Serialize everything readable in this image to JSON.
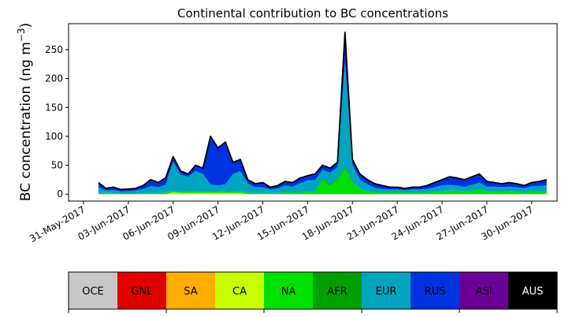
{
  "chart_data": {
    "type": "area",
    "title": "Continental contribution to BC concentrations",
    "ylabel": "BC concentration (ng m⁻³)",
    "xlabel": "",
    "ylim": [
      -12,
      295
    ],
    "yticks": [
      0,
      50,
      100,
      150,
      200,
      250
    ],
    "xlim": [
      -1,
      31.7
    ],
    "xtick_positions": [
      0,
      3,
      6,
      9,
      12,
      15,
      18,
      21,
      24,
      27,
      30
    ],
    "xtick_labels": [
      "31-May-2017",
      "03-Jun-2017",
      "06-Jun-2017",
      "09-Jun-2017",
      "12-Jun-2017",
      "15-Jun-2017",
      "18-Jun-2017",
      "21-Jun-2017",
      "24-Jun-2017",
      "27-Jun-2017",
      "30-Jun-2017"
    ],
    "x": [
      1.0,
      1.5,
      2.0,
      2.5,
      3.0,
      3.5,
      4.0,
      4.5,
      5.0,
      5.5,
      6.0,
      6.5,
      7.0,
      7.5,
      8.0,
      8.5,
      9.0,
      9.5,
      10.0,
      10.5,
      11.0,
      11.5,
      12.0,
      12.5,
      13.0,
      13.5,
      14.0,
      14.5,
      15.0,
      15.5,
      16.0,
      16.5,
      17.0,
      17.5,
      18.0,
      18.5,
      19.0,
      19.5,
      20.0,
      20.5,
      21.0,
      21.5,
      22.0,
      22.5,
      23.0,
      23.5,
      24.0,
      24.5,
      25.0,
      25.5,
      26.0,
      26.5,
      27.0,
      27.5,
      28.0,
      28.5,
      29.0,
      29.5,
      30.0,
      30.5,
      31.0
    ],
    "x_units": "days after 31-May-2017",
    "total": [
      20,
      10,
      12,
      8,
      9,
      10,
      15,
      25,
      20,
      28,
      65,
      40,
      35,
      50,
      45,
      100,
      80,
      90,
      55,
      60,
      25,
      18,
      20,
      12,
      15,
      22,
      20,
      28,
      32,
      35,
      50,
      45,
      55,
      280,
      60,
      35,
      25,
      18,
      15,
      12,
      12,
      10,
      12,
      12,
      15,
      20,
      25,
      30,
      28,
      25,
      30,
      35,
      22,
      20,
      18,
      20,
      18,
      15,
      20,
      22,
      25
    ],
    "series": [
      {
        "name": "OCE",
        "color": "#c8c8c8",
        "values": [
          0,
          0,
          0,
          0,
          0,
          0,
          0,
          0,
          0,
          0,
          0,
          0,
          0,
          0,
          0,
          0,
          0,
          0,
          0,
          0,
          0,
          0,
          0,
          0,
          0,
          0,
          0,
          0,
          0,
          0,
          0,
          0,
          0,
          0,
          0,
          0,
          0,
          0,
          0,
          0,
          0,
          0,
          0,
          0,
          0,
          0,
          0,
          0,
          0,
          0,
          0,
          0,
          0,
          0,
          0,
          0,
          0,
          0,
          0,
          0,
          0
        ]
      },
      {
        "name": "GNL",
        "color": "#e00000",
        "values": [
          0,
          0,
          0,
          0,
          0,
          0,
          0,
          0,
          0,
          0,
          0,
          0,
          0,
          0,
          0,
          0,
          0,
          0,
          0,
          0,
          0,
          0,
          0,
          0,
          0,
          0,
          0,
          0,
          0,
          0,
          0,
          0,
          0,
          0,
          0,
          0,
          0,
          0,
          0,
          0,
          0,
          0,
          0,
          0,
          0,
          0,
          0,
          0,
          0,
          0,
          0,
          0,
          0,
          0,
          0,
          0,
          0,
          0,
          0,
          0,
          0
        ]
      },
      {
        "name": "SA",
        "color": "#ffad00",
        "values": [
          0,
          0,
          0,
          0,
          0,
          0,
          0,
          0,
          0,
          0,
          1,
          1,
          1,
          1,
          1,
          1,
          1,
          1,
          1,
          1,
          0,
          0,
          0,
          0,
          0,
          0,
          0,
          0,
          0,
          0,
          0,
          0,
          0,
          0,
          0,
          0,
          0,
          0,
          0,
          0,
          0,
          0,
          0,
          0,
          0,
          0,
          0,
          0,
          0,
          0,
          0,
          0,
          0,
          0,
          0,
          0,
          0,
          0,
          0,
          0,
          0
        ]
      },
      {
        "name": "CA",
        "color": "#c8ff00",
        "values": [
          0,
          0,
          0,
          0,
          0,
          0,
          0,
          0,
          0,
          0,
          2,
          1,
          1,
          1,
          1,
          1,
          1,
          1,
          1,
          1,
          0,
          0,
          0,
          0,
          0,
          0,
          0,
          0,
          0,
          0,
          0,
          0,
          0,
          0,
          0,
          0,
          0,
          0,
          0,
          0,
          0,
          0,
          0,
          0,
          0,
          0,
          0,
          0,
          0,
          0,
          0,
          0,
          0,
          0,
          0,
          0,
          0,
          0,
          0,
          0,
          0
        ]
      },
      {
        "name": "NA",
        "color": "#00e000",
        "values": [
          2,
          2,
          2,
          1,
          1,
          1,
          2,
          2,
          2,
          3,
          3,
          2,
          3,
          3,
          3,
          3,
          3,
          3,
          3,
          3,
          3,
          2,
          2,
          2,
          2,
          3,
          3,
          3,
          4,
          4,
          25,
          15,
          25,
          45,
          20,
          10,
          5,
          3,
          3,
          3,
          3,
          3,
          3,
          3,
          3,
          4,
          5,
          6,
          6,
          5,
          6,
          8,
          5,
          5,
          5,
          5,
          4,
          3,
          5,
          5,
          5
        ]
      },
      {
        "name": "AFR",
        "color": "#00a000",
        "values": [
          0,
          0,
          0,
          0,
          0,
          0,
          0,
          0,
          0,
          0,
          0,
          0,
          0,
          0,
          0,
          0,
          0,
          0,
          0,
          0,
          0,
          0,
          0,
          0,
          0,
          0,
          0,
          0,
          0,
          0,
          2,
          2,
          2,
          3,
          1,
          0,
          0,
          0,
          0,
          0,
          0,
          0,
          0,
          0,
          0,
          0,
          0,
          0,
          0,
          0,
          0,
          0,
          0,
          0,
          0,
          0,
          0,
          0,
          0,
          0,
          0
        ]
      },
      {
        "name": "EUR",
        "color": "#00a5c0",
        "values": [
          10,
          4,
          5,
          4,
          4,
          5,
          7,
          12,
          10,
          13,
          50,
          30,
          25,
          35,
          30,
          12,
          10,
          12,
          30,
          35,
          15,
          10,
          10,
          6,
          8,
          12,
          10,
          16,
          20,
          20,
          15,
          20,
          20,
          180,
          30,
          15,
          12,
          8,
          6,
          5,
          5,
          4,
          5,
          5,
          6,
          8,
          10,
          10,
          9,
          8,
          10,
          12,
          8,
          8,
          7,
          8,
          8,
          7,
          9,
          9,
          10
        ]
      },
      {
        "name": "RUS",
        "color": "#0032e0",
        "values": [
          6,
          3,
          4,
          2,
          3,
          3,
          5,
          9,
          6,
          10,
          8,
          5,
          5,
          9,
          9,
          82,
          64,
          72,
          19,
          19,
          6,
          5,
          7,
          3,
          4,
          6,
          6,
          8,
          7,
          10,
          7,
          7,
          7,
          48,
          8,
          9,
          7,
          6,
          5,
          3,
          3,
          2,
          3,
          3,
          5,
          7,
          9,
          13,
          12,
          11,
          13,
          14,
          8,
          6,
          5,
          6,
          5,
          4,
          5,
          7,
          9
        ]
      },
      {
        "name": "ASI",
        "color": "#6a0098",
        "values": [
          2,
          1,
          1,
          1,
          1,
          1,
          1,
          2,
          2,
          2,
          1,
          1,
          1,
          1,
          1,
          1,
          1,
          1,
          1,
          1,
          1,
          1,
          1,
          1,
          1,
          1,
          1,
          1,
          1,
          1,
          1,
          1,
          1,
          4,
          1,
          1,
          1,
          1,
          1,
          1,
          1,
          1,
          1,
          1,
          1,
          1,
          1,
          1,
          1,
          1,
          1,
          1,
          1,
          1,
          1,
          1,
          1,
          1,
          1,
          1,
          1
        ]
      },
      {
        "name": "AUS",
        "color": "#000000",
        "values": [
          0,
          0,
          0,
          0,
          0,
          0,
          0,
          0,
          0,
          0,
          0,
          0,
          0,
          0,
          0,
          0,
          0,
          0,
          0,
          0,
          0,
          0,
          0,
          0,
          0,
          0,
          0,
          0,
          0,
          0,
          0,
          0,
          0,
          0,
          0,
          0,
          0,
          0,
          0,
          0,
          0,
          0,
          0,
          0,
          0,
          0,
          0,
          0,
          0,
          0,
          0,
          0,
          0,
          0,
          0,
          0,
          0,
          0,
          0,
          0,
          0
        ]
      }
    ],
    "legend": {
      "placement": "bottom",
      "items": [
        {
          "label": "OCE",
          "color": "#c8c8c8",
          "text_color": "#000000"
        },
        {
          "label": "GNL",
          "color": "#e00000",
          "text_color": "#000000"
        },
        {
          "label": "SA",
          "color": "#ffad00",
          "text_color": "#000000"
        },
        {
          "label": "CA",
          "color": "#c8ff00",
          "text_color": "#000000"
        },
        {
          "label": "NA",
          "color": "#00e000",
          "text_color": "#000000"
        },
        {
          "label": "AFR",
          "color": "#00a000",
          "text_color": "#000000"
        },
        {
          "label": "EUR",
          "color": "#00a5c0",
          "text_color": "#000000"
        },
        {
          "label": "RUS",
          "color": "#0032e0",
          "text_color": "#000000"
        },
        {
          "label": "ASI",
          "color": "#6a0098",
          "text_color": "#000000"
        },
        {
          "label": "AUS",
          "color": "#000000",
          "text_color": "#ffffff"
        }
      ]
    },
    "grid": false
  }
}
